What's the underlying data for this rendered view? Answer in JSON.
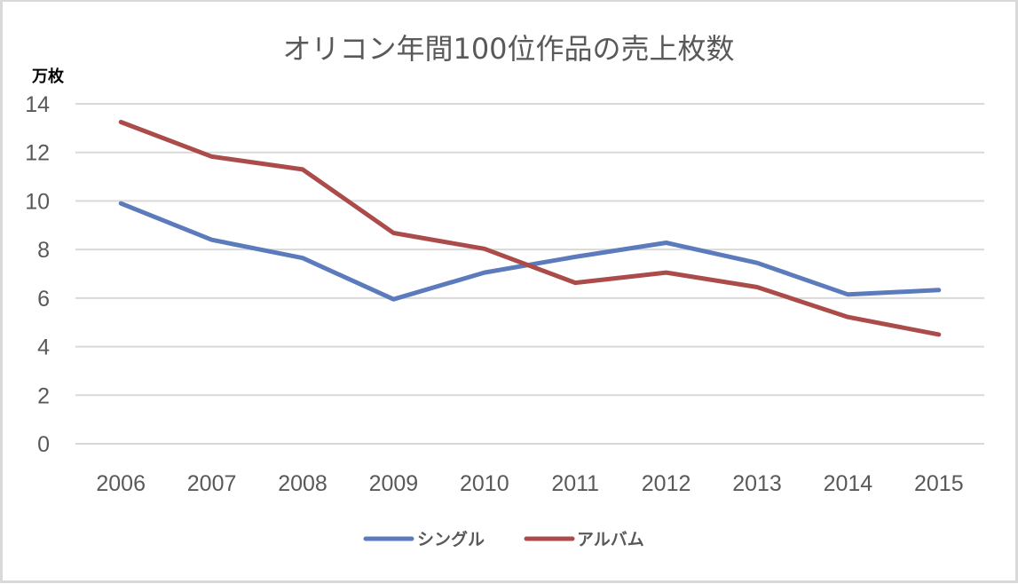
{
  "chart_data": {
    "type": "line",
    "title": "オリコン年間100位作品の売上枚数",
    "ylabel": "万枚",
    "xlabel": "",
    "categories": [
      "2006",
      "2007",
      "2008",
      "2009",
      "2010",
      "2011",
      "2012",
      "2013",
      "2014",
      "2015"
    ],
    "ylim": [
      0,
      14
    ],
    "yticks": [
      "0",
      "2",
      "4",
      "6",
      "8",
      "10",
      "12",
      "14"
    ],
    "grid": true,
    "legend_position": "bottom",
    "series": [
      {
        "name": "シングル",
        "color": "#5b7bbd",
        "values": [
          9.9,
          8.4,
          7.65,
          5.95,
          7.05,
          7.7,
          8.28,
          7.45,
          6.15,
          6.33
        ]
      },
      {
        "name": "アルバム",
        "color": "#ab4c4a",
        "values": [
          13.25,
          11.83,
          11.3,
          8.68,
          8.03,
          6.63,
          7.05,
          6.45,
          5.22,
          4.5
        ]
      }
    ]
  }
}
